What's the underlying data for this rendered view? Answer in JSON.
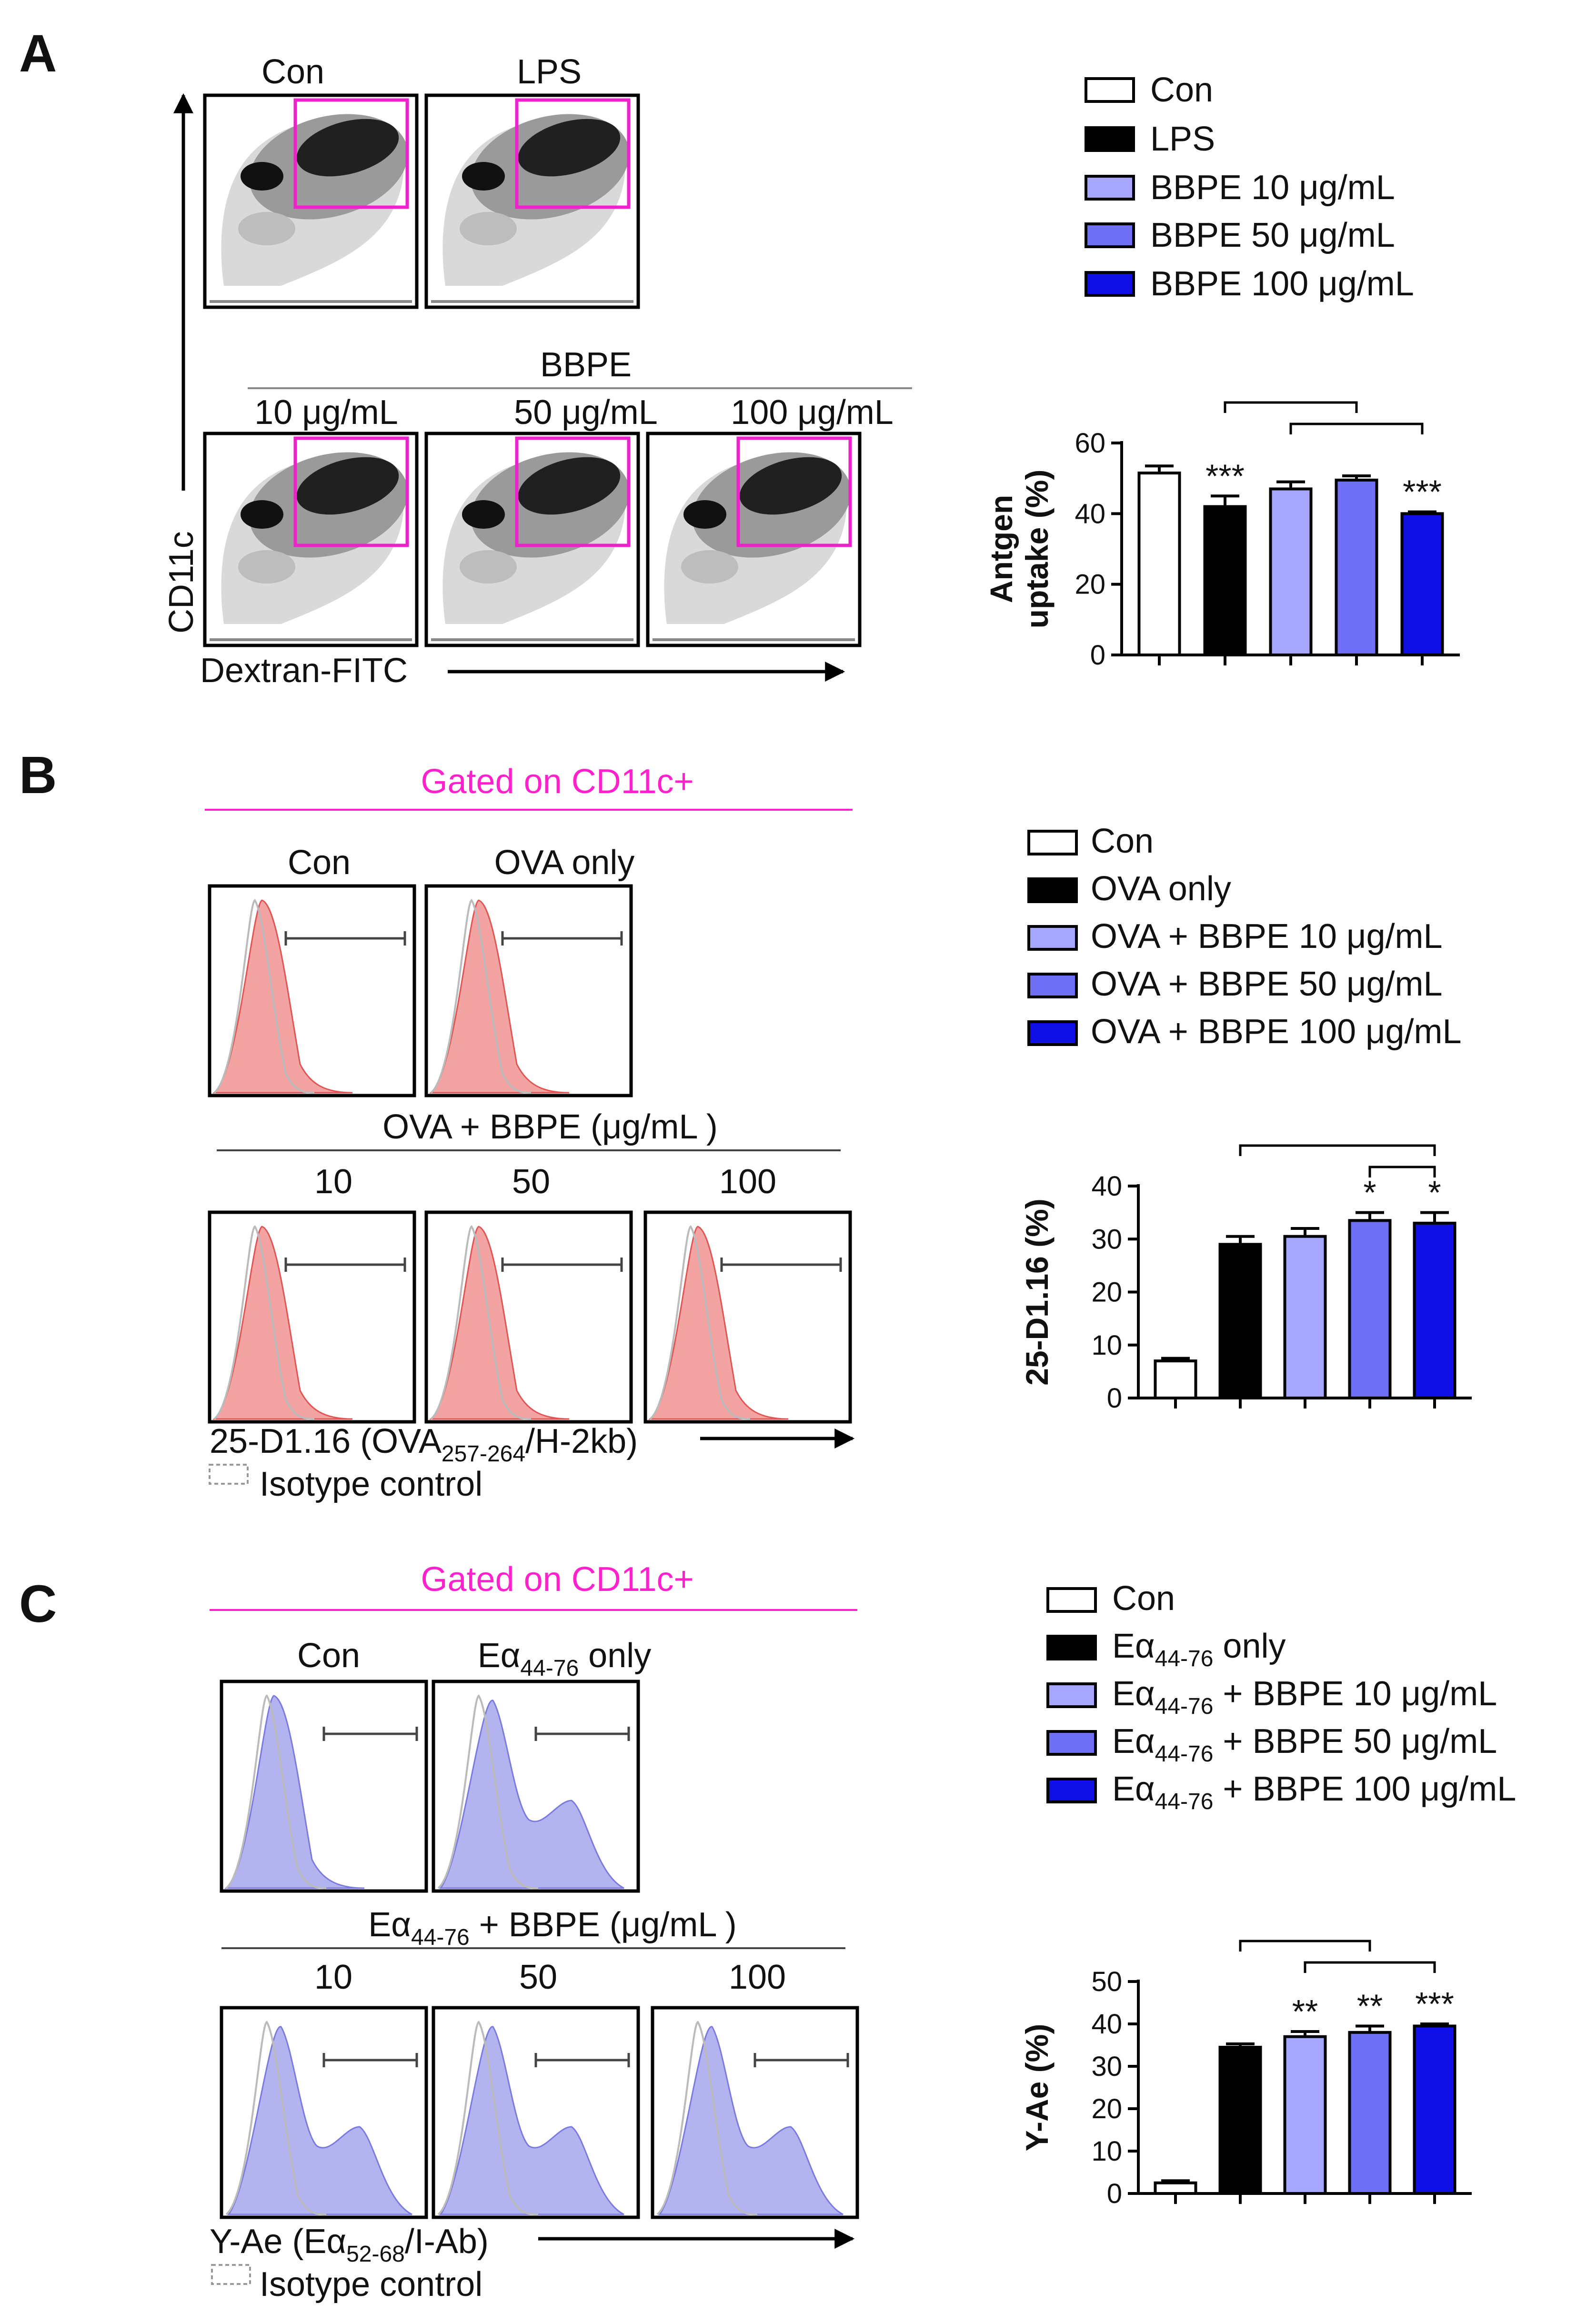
{
  "panels": {
    "A": {
      "label": "A",
      "flow": {
        "top_labels": [
          "Con",
          "LPS"
        ],
        "group_label": "BBPE",
        "dose_labels": [
          "10 μg/mL",
          "50 μg/mL",
          "100 μg/mL"
        ],
        "y_axis_label": "CD11c",
        "x_axis_label": "Dextran-FITC",
        "gate_color": "#ee22cc"
      }
    },
    "B": {
      "label": "B",
      "gate_title": "Gated on CD11c+",
      "flow": {
        "top_labels": [
          "Con",
          "OVA only"
        ],
        "group_label": "OVA + BBPE (μg/mL )",
        "dose_labels": [
          "10",
          "50",
          "100"
        ],
        "x_axis_main": "25-D1.16  (OVA",
        "x_axis_sub": "257-264",
        "x_axis_end": "/H-2kb)",
        "isotype_label": "Isotype control",
        "hist_color": "#f4a3a3"
      }
    },
    "C": {
      "label": "C",
      "gate_title": "Gated on CD11c+",
      "flow": {
        "top_label_con": "Con",
        "top_label_e": "Eα",
        "top_label_sub": "44-76",
        "top_label_end": " only",
        "group_label_e": "Eα",
        "group_label_sub": "44-76",
        "group_label_end": " + BBPE (μg/mL )",
        "dose_labels": [
          "10",
          "50",
          "100"
        ],
        "x_axis_main": "Y-Ae (Eα",
        "x_axis_sub": "52-68",
        "x_axis_end": "/I-Ab)",
        "isotype_label": "Isotype control",
        "hist_color": "#b3b3f0"
      }
    }
  },
  "legends": {
    "A": [
      "Con",
      "LPS",
      "BBPE 10 μg/mL",
      "BBPE 50 μg/mL",
      "BBPE 100 μg/mL"
    ],
    "B": [
      "Con",
      "OVA only",
      "OVA + BBPE 10 μg/mL",
      "OVA + BBPE 50 μg/mL",
      "OVA + BBPE 100 μg/mL"
    ],
    "C": [
      {
        "main": "Eα",
        "sub": "44-76",
        "end": " only"
      },
      {
        "main": "Eα",
        "sub": "44-76",
        "end": " + BBPE 10 μg/mL"
      },
      {
        "main": "Eα",
        "sub": "44-76",
        "end": " + BBPE 50 μg/mL"
      },
      {
        "main": "Eα",
        "sub": "44-76",
        "end": " + BBPE 100 μg/mL"
      }
    ],
    "C_first": "Con",
    "colors": [
      "#ffffff",
      "#000000",
      "#a6a6ff",
      "#6f6ff5",
      "#1010e6"
    ]
  },
  "chart_data": [
    {
      "type": "bar",
      "panel": "A",
      "categories": [
        "Con",
        "LPS",
        "BBPE 10 μg/mL",
        "BBPE 50 μg/mL",
        "BBPE 100 μg/mL"
      ],
      "values": [
        51.5,
        42,
        47,
        49.5,
        40
      ],
      "errors": [
        2,
        3,
        2,
        1.2,
        0.5
      ],
      "significance": [
        "",
        "***",
        "",
        "",
        "***"
      ],
      "ylabel": "Antgen uptake  (%)",
      "ylabel_lines": [
        "Antgen",
        "uptake  (%)"
      ],
      "ylim": [
        0,
        60
      ],
      "yticks": [
        0,
        20,
        40,
        60
      ],
      "brackets": [
        [
          1,
          3
        ],
        [
          2,
          4
        ]
      ]
    },
    {
      "type": "bar",
      "panel": "B",
      "categories": [
        "Con",
        "OVA only",
        "OVA + BBPE 10 μg/mL",
        "OVA + BBPE 50 μg/mL",
        "OVA + BBPE 100 μg/mL"
      ],
      "values": [
        7,
        29,
        30.5,
        33.5,
        33
      ],
      "errors": [
        0.5,
        1.5,
        1.5,
        1.5,
        2
      ],
      "significance": [
        "",
        "",
        "",
        "*",
        "*"
      ],
      "ylabel": "25-D1.16 (%)",
      "ylabel_lines": [
        "25-D1.16 (%)"
      ],
      "ylim": [
        0,
        40
      ],
      "yticks": [
        0,
        10,
        20,
        30,
        40
      ],
      "brackets": [
        [
          1,
          4
        ],
        [
          3,
          4
        ]
      ]
    },
    {
      "type": "bar",
      "panel": "C",
      "categories": [
        "Con",
        "Eα44-76 only",
        "Eα44-76 + BBPE 10 μg/mL",
        "Eα44-76 + BBPE 50 μg/mL",
        "Eα44-76 + BBPE 100 μg/mL"
      ],
      "values": [
        2.5,
        34.5,
        37,
        38,
        39.5
      ],
      "errors": [
        0.5,
        0.8,
        1.2,
        1.5,
        0.5
      ],
      "significance": [
        "",
        "",
        "**",
        "**",
        "***"
      ],
      "ylabel": "Y-Ae (%)",
      "ylabel_lines": [
        "Y-Ae (%)"
      ],
      "ylim": [
        0,
        50
      ],
      "yticks": [
        0,
        10,
        20,
        30,
        40,
        50
      ],
      "brackets": [
        [
          1,
          3
        ],
        [
          2,
          4
        ]
      ]
    }
  ]
}
